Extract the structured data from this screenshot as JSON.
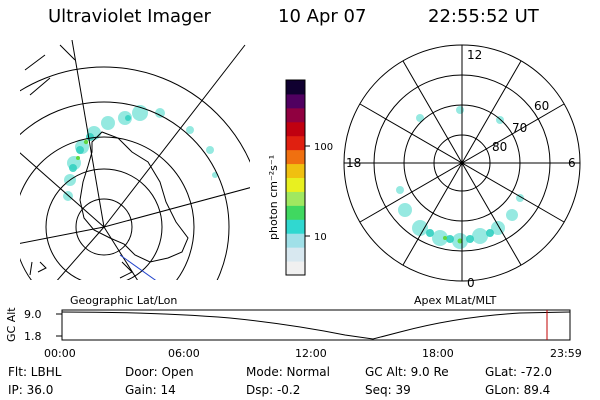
{
  "header": {
    "title": "Ultraviolet Imager",
    "date": "10 Apr 07",
    "time": "22:55:52 UT"
  },
  "colorbar": {
    "label": "photon cm⁻²s⁻¹",
    "ticks": [
      "100",
      "10"
    ],
    "colors": [
      "#f0f0f0",
      "#d8e8f0",
      "#a0e0e8",
      "#30d8d0",
      "#40d860",
      "#a0e860",
      "#e8f020",
      "#f0c010",
      "#f07010",
      "#e02010",
      "#c00010",
      "#900040",
      "#500060",
      "#100030"
    ]
  },
  "left_map": {
    "caption": "Geographic Lat/Lon"
  },
  "right_map": {
    "caption": "Apex  MLat/MLT",
    "mlt_labels": {
      "top": "12",
      "left": "18",
      "right": "6",
      "bottom": "0"
    },
    "lat_labels": [
      "60",
      "70",
      "80"
    ]
  },
  "timeline": {
    "ylabel": "GC Alt",
    "yticks": [
      "9.0",
      "1.8"
    ],
    "xticks": [
      "00:00",
      "06:00",
      "12:00",
      "18:00",
      "23:59"
    ]
  },
  "status": {
    "flt": "Flt: LBHL",
    "ip": "IP: 36.0",
    "door": "Door: Open",
    "gain": "Gain: 14",
    "mode": "Mode: Normal",
    "dsp": "Dsp:   -0.2",
    "gcalt": "GC Alt: 9.0 Re",
    "seq": "Seq: 39",
    "glat": "GLat: -72.0",
    "glon": "GLon:  89.4"
  }
}
